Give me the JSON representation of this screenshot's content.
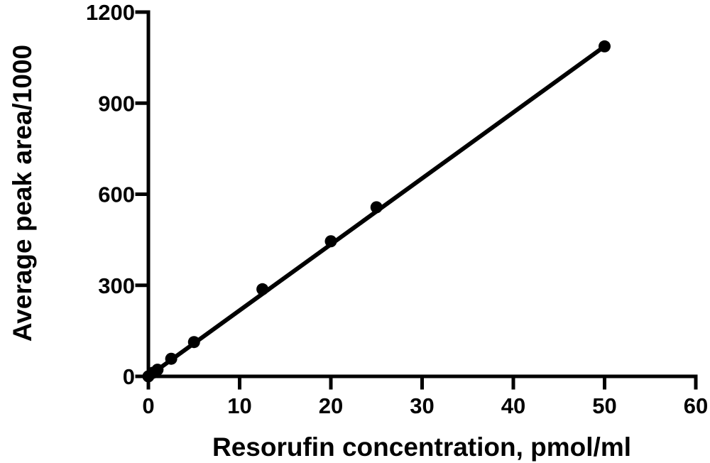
{
  "chart_data": {
    "type": "scatter",
    "title": "",
    "xlabel": "Resorufin concentration, pmol/ml",
    "ylabel": "Average peak area/1000",
    "xlim": [
      0,
      60
    ],
    "ylim": [
      0,
      1200
    ],
    "x_ticks": [
      0,
      10,
      20,
      30,
      40,
      50,
      60
    ],
    "y_ticks": [
      0,
      300,
      600,
      900,
      1200
    ],
    "grid": false,
    "legend": "none",
    "series": [
      {
        "marker": "filled-circle",
        "color": "#000000",
        "points": [
          {
            "x": 0,
            "y": 0
          },
          {
            "x": 0.5,
            "y": 12
          },
          {
            "x": 1,
            "y": 22
          },
          {
            "x": 2.5,
            "y": 58
          },
          {
            "x": 5,
            "y": 113
          },
          {
            "x": 12.5,
            "y": 287
          },
          {
            "x": 20,
            "y": 445
          },
          {
            "x": 25,
            "y": 557
          },
          {
            "x": 50,
            "y": 1087
          }
        ]
      }
    ],
    "fit_line": {
      "type": "linear",
      "color": "#000000",
      "x": [
        0,
        50
      ],
      "y": [
        0,
        1087
      ]
    }
  }
}
